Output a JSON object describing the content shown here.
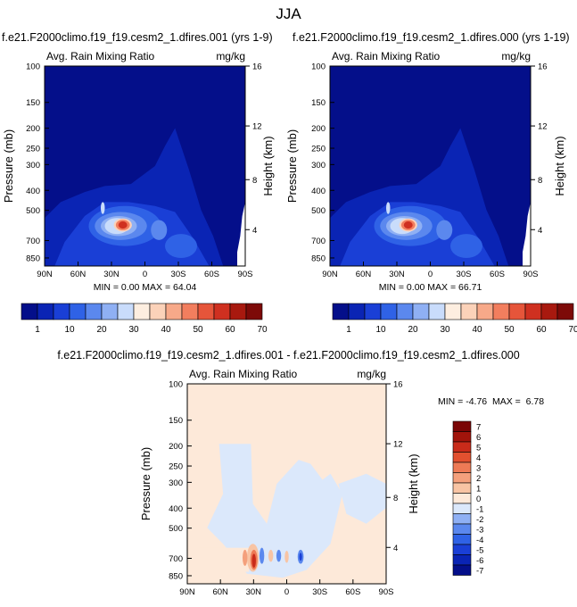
{
  "page": {
    "title": "JJA"
  },
  "colors": {
    "field_levels": [
      "#040f8a",
      "#0a24b4",
      "#1a3fd6",
      "#2f62e6",
      "#5b88ee",
      "#8fb0f4",
      "#c9dcfb",
      "#fdeee0",
      "#fbd2b9",
      "#f7a989",
      "#f27e5e",
      "#e6553a",
      "#cf3020",
      "#a8190f",
      "#7d0a08"
    ],
    "diff_levels": [
      "#040f8a",
      "#0a24b4",
      "#1a3fd6",
      "#2f62e6",
      "#5b88ee",
      "#8fb0f4",
      "#dbe8fb",
      "#fde9d9",
      "#f8c4a4",
      "#f4a07c",
      "#ee7a55",
      "#e2502f",
      "#c92b1a",
      "#a2140b",
      "#7a0606"
    ]
  },
  "chart_data": [
    {
      "id": "panel-1",
      "type": "heatmap",
      "title": "f.e21.F2000climo.f19_f19.cesm2_1.dfires.001 (yrs 1-9)",
      "left_title": "Avg. Rain Mixing Ratio",
      "right_title": "mg/kg",
      "ylabel": "Pressure (mb)",
      "y2label": "Height (km)",
      "x_ticks": [
        "90N",
        "60N",
        "30N",
        "0",
        "30S",
        "60S",
        "90S"
      ],
      "y_ticks": [
        "100",
        "150",
        "200",
        "250",
        "300",
        "400",
        "500",
        "700",
        "850"
      ],
      "y2_ticks": [
        "16",
        "12",
        "8",
        "4"
      ],
      "stats": "MIN =  0.00  MAX = 64.04",
      "min": 0.0,
      "max": 64.04,
      "colorbar_labels": [
        "1",
        "10",
        "20",
        "30",
        "40",
        "50",
        "60",
        "70"
      ]
    },
    {
      "id": "panel-2",
      "type": "heatmap",
      "title": "f.e21.F2000climo.f19_f19.cesm2_1.dfires.000 (yrs 1-19)",
      "left_title": "Avg. Rain Mixing Ratio",
      "right_title": "mg/kg",
      "ylabel": "Pressure (mb)",
      "y2label": "Height (km)",
      "x_ticks": [
        "90N",
        "60N",
        "30N",
        "0",
        "30S",
        "60S",
        "90S"
      ],
      "y_ticks": [
        "100",
        "150",
        "200",
        "250",
        "300",
        "400",
        "500",
        "700",
        "850"
      ],
      "y2_ticks": [
        "16",
        "12",
        "8",
        "4"
      ],
      "stats": "MIN =  0.00  MAX = 66.71",
      "min": 0.0,
      "max": 66.71,
      "colorbar_labels": [
        "1",
        "10",
        "20",
        "30",
        "40",
        "50",
        "60",
        "70"
      ]
    },
    {
      "id": "panel-diff",
      "type": "heatmap",
      "title": "f.e21.F2000climo.f19_f19.cesm2_1.dfires.001 - f.e21.F2000climo.f19_f19.cesm2_1.dfires.000",
      "left_title": "Avg. Rain Mixing Ratio",
      "right_title": "mg/kg",
      "ylabel": "Pressure (mb)",
      "y2label": "Height (km)",
      "x_ticks": [
        "90N",
        "60N",
        "30N",
        "0",
        "30S",
        "60S",
        "90S"
      ],
      "y_ticks": [
        "100",
        "150",
        "200",
        "250",
        "300",
        "400",
        "500",
        "700",
        "850"
      ],
      "y2_ticks": [
        "16",
        "12",
        "8",
        "4"
      ],
      "stats": "MIN = -4.76  MAX =  6.78",
      "min": -4.76,
      "max": 6.78,
      "colorbar_labels": [
        "7",
        "6",
        "5",
        "4",
        "3",
        "2",
        "1",
        "0",
        "-1",
        "-2",
        "-3",
        "-4",
        "-5",
        "-6",
        "-7"
      ]
    }
  ]
}
